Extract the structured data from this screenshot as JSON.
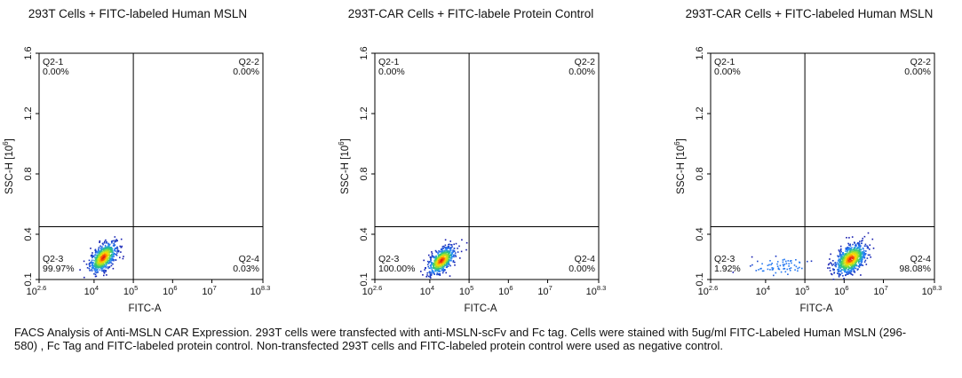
{
  "chart_data": [
    {
      "type": "scatter",
      "title": "293T Cells + FITC-labeled Human MSLN",
      "xlabel": "FITC-A",
      "ylabel": "SSC-H",
      "ylabel_sup": "6",
      "x_scale": "log",
      "xlim": [
        2.6,
        8.3
      ],
      "ylim": [
        0.1,
        1.6
      ],
      "x_ticks": [
        {
          "base": "10",
          "exp": "2.6"
        },
        {
          "base": "10",
          "exp": "4"
        },
        {
          "base": "10",
          "exp": "5"
        },
        {
          "base": "10",
          "exp": "6"
        },
        {
          "base": "10",
          "exp": "7"
        },
        {
          "base": "10",
          "exp": "8.3"
        }
      ],
      "y_ticks": [
        "0.1",
        "0.4",
        "0.8",
        "1.2",
        "1.6"
      ],
      "gate": {
        "x": 5.0,
        "y": 0.45
      },
      "quadrants": [
        {
          "name": "Q2-1",
          "value": "0.00%"
        },
        {
          "name": "Q2-2",
          "value": "0.00%"
        },
        {
          "name": "Q2-3",
          "value": "99.97%"
        },
        {
          "name": "Q2-4",
          "value": "0.03%"
        }
      ],
      "populations": [
        {
          "x": 4.22,
          "y": 0.25,
          "sx": 0.17,
          "sy": 0.05,
          "rho": 0.55,
          "n": 650
        }
      ]
    },
    {
      "type": "scatter",
      "title": "293T-CAR Cells + FITC-labele Protein Control",
      "xlabel": "FITC-A",
      "ylabel": "SSC-H",
      "ylabel_sup": "6",
      "x_scale": "log",
      "xlim": [
        2.6,
        8.3
      ],
      "ylim": [
        0.1,
        1.6
      ],
      "x_ticks": [
        {
          "base": "10",
          "exp": "2.6"
        },
        {
          "base": "10",
          "exp": "4"
        },
        {
          "base": "10",
          "exp": "5"
        },
        {
          "base": "10",
          "exp": "6"
        },
        {
          "base": "10",
          "exp": "7"
        },
        {
          "base": "10",
          "exp": "8.3"
        }
      ],
      "y_ticks": [
        "0.1",
        "0.4",
        "0.8",
        "1.2",
        "1.6"
      ],
      "gate": {
        "x": 5.0,
        "y": 0.45
      },
      "quadrants": [
        {
          "name": "Q2-1",
          "value": "0.00%"
        },
        {
          "name": "Q2-2",
          "value": "0.00%"
        },
        {
          "name": "Q2-3",
          "value": "100.00%"
        },
        {
          "name": "Q2-4",
          "value": "0.00%"
        }
      ],
      "populations": [
        {
          "x": 4.28,
          "y": 0.23,
          "sx": 0.17,
          "sy": 0.045,
          "rho": 0.55,
          "n": 650
        }
      ]
    },
    {
      "type": "scatter",
      "title": "293T-CAR Cells + FITC-labeled Human MSLN",
      "xlabel": "FITC-A",
      "ylabel": "SSC-H",
      "ylabel_sup": "6",
      "x_scale": "log",
      "xlim": [
        2.6,
        8.3
      ],
      "ylim": [
        0.1,
        1.6
      ],
      "x_ticks": [
        {
          "base": "10",
          "exp": "2.6"
        },
        {
          "base": "10",
          "exp": "4"
        },
        {
          "base": "10",
          "exp": "5"
        },
        {
          "base": "10",
          "exp": "6"
        },
        {
          "base": "10",
          "exp": "7"
        },
        {
          "base": "10",
          "exp": "8.3"
        }
      ],
      "y_ticks": [
        "0.1",
        "0.4",
        "0.8",
        "1.2",
        "1.6"
      ],
      "gate": {
        "x": 5.0,
        "y": 0.45
      },
      "quadrants": [
        {
          "name": "Q2-1",
          "value": "0.00%"
        },
        {
          "name": "Q2-2",
          "value": "0.00%"
        },
        {
          "name": "Q2-3",
          "value": "1.92%"
        },
        {
          "name": "Q2-4",
          "value": "98.08%"
        }
      ],
      "populations": [
        {
          "x": 6.15,
          "y": 0.24,
          "sx": 0.2,
          "sy": 0.05,
          "rho": 0.45,
          "n": 750
        },
        {
          "x": 4.35,
          "y": 0.19,
          "sx": 0.35,
          "sy": 0.03,
          "rho": 0.1,
          "n": 70
        }
      ]
    }
  ],
  "caption": "FACS Analysis of Anti-MSLN CAR Expression. 293T cells were transfected with anti-MSLN-scFv and Fc tag. Cells were stained with 5ug/ml FITC-Labeled Human MSLN (296-580) , Fc Tag and FITC-labeled protein control. Non-transfected 293T cells and FITC-labeled protein control were used as negative control."
}
